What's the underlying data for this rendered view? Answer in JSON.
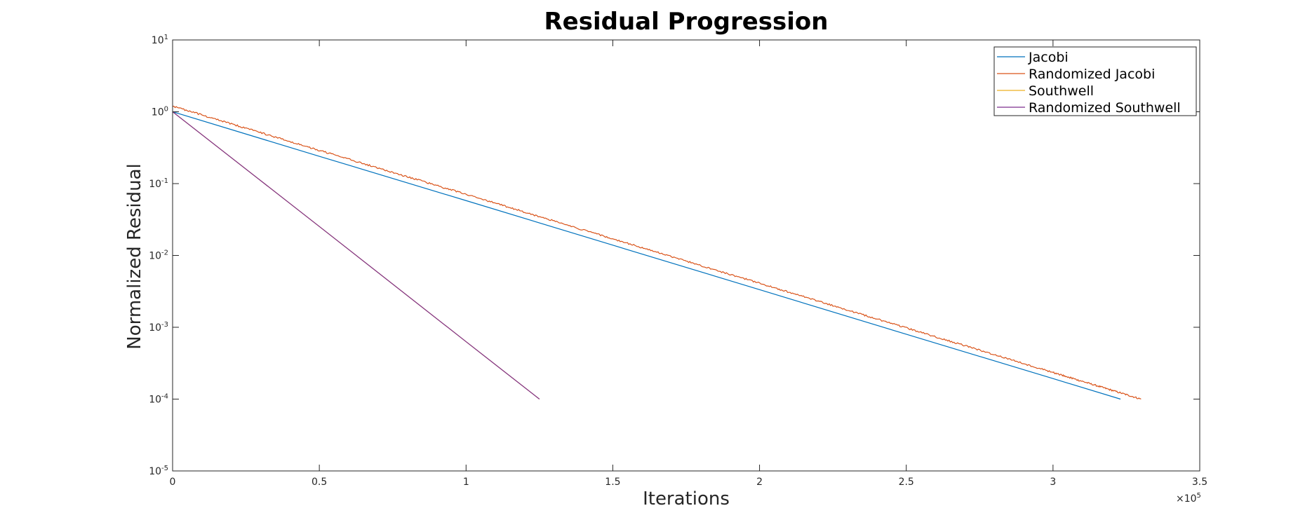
{
  "chart_data": {
    "type": "line",
    "title": "Residual Progression",
    "xlabel": "Iterations",
    "ylabel": "Normalized Residual",
    "xlim": [
      0,
      350000
    ],
    "ylim": [
      1e-05,
      10
    ],
    "yscale": "log",
    "grid": false,
    "legend_position": "top-right",
    "x_multiplier_label": "×10",
    "x_multiplier_exponent": "5",
    "x_ticks": [
      {
        "value": 0,
        "label": "0"
      },
      {
        "value": 50000,
        "label": "0.5"
      },
      {
        "value": 100000,
        "label": "1"
      },
      {
        "value": 150000,
        "label": "1.5"
      },
      {
        "value": 200000,
        "label": "2"
      },
      {
        "value": 250000,
        "label": "2.5"
      },
      {
        "value": 300000,
        "label": "3"
      },
      {
        "value": 350000,
        "label": "3.5"
      }
    ],
    "y_ticks": [
      {
        "value": 10,
        "base": "10",
        "exp": "1"
      },
      {
        "value": 1,
        "base": "10",
        "exp": "0"
      },
      {
        "value": 0.1,
        "base": "10",
        "exp": "-1"
      },
      {
        "value": 0.01,
        "base": "10",
        "exp": "-2"
      },
      {
        "value": 0.001,
        "base": "10",
        "exp": "-3"
      },
      {
        "value": 0.0001,
        "base": "10",
        "exp": "-4"
      },
      {
        "value": 1e-05,
        "base": "10",
        "exp": "-5"
      }
    ],
    "series": [
      {
        "name": "Jacobi",
        "color": "#0072BD",
        "style": "smooth",
        "x": [
          0,
          50000,
          100000,
          150000,
          200000,
          250000,
          300000,
          323000
        ],
        "y": [
          1.0,
          0.24,
          0.058,
          0.0139,
          0.00334,
          0.0008,
          0.000193,
          0.0001
        ]
      },
      {
        "name": "Randomized Jacobi",
        "color": "#D95319",
        "style": "noisy",
        "x": [
          0,
          50000,
          100000,
          150000,
          200000,
          250000,
          300000,
          330000
        ],
        "y": [
          1.2,
          0.29,
          0.071,
          0.017,
          0.0041,
          0.00098,
          0.000235,
          0.0001
        ]
      },
      {
        "name": "Southwell",
        "color": "#EDB120",
        "style": "smooth",
        "x": [
          0,
          50000,
          100000,
          125000
        ],
        "y": [
          1.0,
          0.0253,
          0.00063,
          0.0001
        ]
      },
      {
        "name": "Randomized Southwell",
        "color": "#7E2F8E",
        "style": "smooth",
        "x": [
          0,
          50000,
          100000,
          125000
        ],
        "y": [
          1.0,
          0.0253,
          0.00063,
          0.0001
        ]
      }
    ]
  }
}
